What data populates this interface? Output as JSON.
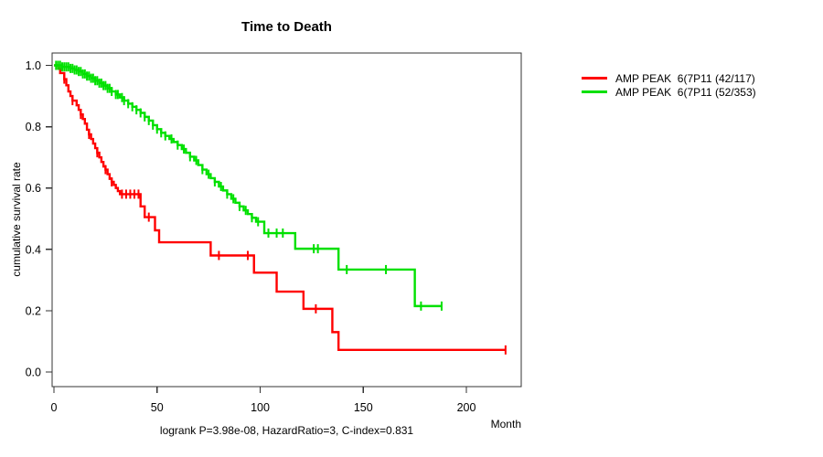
{
  "title": "Time to Death",
  "footnote": "logrank P=3.98e-08, HazardRatio=3, C-index=0.831",
  "x_axis": {
    "label": "Month",
    "ticks": [
      0,
      50,
      100,
      150,
      200
    ]
  },
  "y_axis": {
    "label": "cumulative survival rate",
    "ticks": [
      "0.0",
      "0.2",
      "0.4",
      "0.6",
      "0.8",
      "1.0"
    ]
  },
  "legend": {
    "items": [
      {
        "label": "AMP PEAK  6(7P11 (42/117)",
        "color": "#ff0000"
      },
      {
        "label": "AMP PEAK  6(7P11 (52/353)",
        "color": "#00e000"
      }
    ]
  },
  "chart_data": {
    "type": "line",
    "subtype": "kaplan-meier-step",
    "title": "Time to Death",
    "xlabel": "Month",
    "ylabel": "cumulative survival rate",
    "xlim": [
      0,
      227
    ],
    "ylim": [
      0,
      1.0
    ],
    "x_ticks": [
      0,
      50,
      100,
      150,
      200
    ],
    "y_ticks": [
      0,
      0.2,
      0.4,
      0.6,
      0.8,
      1.0
    ],
    "grid": false,
    "legend_position": "right",
    "annotation": "logrank P=3.98e-08, HazardRatio=3, C-index=0.831",
    "series": [
      {
        "name": "AMP PEAK  6(7P11 (42/117)",
        "color": "#ff0000",
        "events_total": "42/117",
        "end_month": 219,
        "steps": [
          [
            0,
            1.0
          ],
          [
            2,
            0.99
          ],
          [
            3,
            0.975
          ],
          [
            5,
            0.955
          ],
          [
            6,
            0.935
          ],
          [
            7,
            0.915
          ],
          [
            8,
            0.9
          ],
          [
            9,
            0.885
          ],
          [
            11,
            0.87
          ],
          [
            12,
            0.855
          ],
          [
            13,
            0.84
          ],
          [
            14,
            0.825
          ],
          [
            15,
            0.81
          ],
          [
            16,
            0.79
          ],
          [
            17,
            0.775
          ],
          [
            18,
            0.76
          ],
          [
            19,
            0.745
          ],
          [
            20,
            0.73
          ],
          [
            21,
            0.715
          ],
          [
            22,
            0.7
          ],
          [
            23,
            0.685
          ],
          [
            24,
            0.67
          ],
          [
            25,
            0.66
          ],
          [
            26,
            0.645
          ],
          [
            27,
            0.63
          ],
          [
            28,
            0.62
          ],
          [
            29,
            0.61
          ],
          [
            30,
            0.6
          ],
          [
            31,
            0.59
          ],
          [
            32,
            0.58
          ],
          [
            42,
            0.54
          ],
          [
            44,
            0.505
          ],
          [
            49,
            0.462
          ],
          [
            51,
            0.423
          ],
          [
            76,
            0.38
          ],
          [
            97,
            0.324
          ],
          [
            108,
            0.262
          ],
          [
            121,
            0.206
          ],
          [
            135,
            0.13
          ],
          [
            138,
            0.072
          ]
        ],
        "censor_months": [
          5,
          9,
          13,
          17,
          21,
          25,
          28,
          33,
          35,
          37,
          39,
          41,
          46,
          80,
          94,
          127,
          219
        ]
      },
      {
        "name": "AMP PEAK  6(7P11 (52/353)",
        "color": "#00e000",
        "events_total": "52/353",
        "end_month": 188,
        "steps": [
          [
            0,
            1.0
          ],
          [
            4,
            0.995
          ],
          [
            8,
            0.99
          ],
          [
            10,
            0.985
          ],
          [
            12,
            0.98
          ],
          [
            14,
            0.972
          ],
          [
            16,
            0.965
          ],
          [
            18,
            0.958
          ],
          [
            20,
            0.95
          ],
          [
            22,
            0.942
          ],
          [
            24,
            0.934
          ],
          [
            26,
            0.925
          ],
          [
            28,
            0.915
          ],
          [
            30,
            0.905
          ],
          [
            32,
            0.895
          ],
          [
            34,
            0.885
          ],
          [
            36,
            0.875
          ],
          [
            38,
            0.865
          ],
          [
            40,
            0.855
          ],
          [
            42,
            0.845
          ],
          [
            44,
            0.832
          ],
          [
            46,
            0.82
          ],
          [
            48,
            0.805
          ],
          [
            50,
            0.792
          ],
          [
            52,
            0.78
          ],
          [
            54,
            0.77
          ],
          [
            56,
            0.76
          ],
          [
            58,
            0.75
          ],
          [
            60,
            0.74
          ],
          [
            62,
            0.727
          ],
          [
            64,
            0.715
          ],
          [
            66,
            0.702
          ],
          [
            68,
            0.69
          ],
          [
            70,
            0.675
          ],
          [
            72,
            0.66
          ],
          [
            74,
            0.645
          ],
          [
            76,
            0.632
          ],
          [
            78,
            0.62
          ],
          [
            80,
            0.605
          ],
          [
            82,
            0.592
          ],
          [
            84,
            0.58
          ],
          [
            86,
            0.565
          ],
          [
            88,
            0.552
          ],
          [
            90,
            0.54
          ],
          [
            92,
            0.527
          ],
          [
            94,
            0.515
          ],
          [
            96,
            0.503
          ],
          [
            98,
            0.49
          ],
          [
            102,
            0.453
          ],
          [
            117,
            0.402
          ],
          [
            138,
            0.334
          ],
          [
            175,
            0.215
          ]
        ],
        "censor_months": [
          1,
          2,
          3,
          4,
          5,
          6,
          7,
          8,
          9,
          10,
          11,
          12,
          13,
          14,
          15,
          16,
          17,
          18,
          19,
          20,
          21,
          22,
          23,
          24,
          25,
          26,
          27,
          28,
          30,
          31,
          33,
          34,
          36,
          38,
          40,
          42,
          44,
          46,
          48,
          50,
          52,
          54,
          57,
          60,
          63,
          66,
          69,
          72,
          75,
          78,
          81,
          84,
          87,
          90,
          93,
          96,
          99,
          104,
          108,
          111,
          126,
          128,
          142,
          161,
          178,
          188
        ]
      }
    ]
  }
}
